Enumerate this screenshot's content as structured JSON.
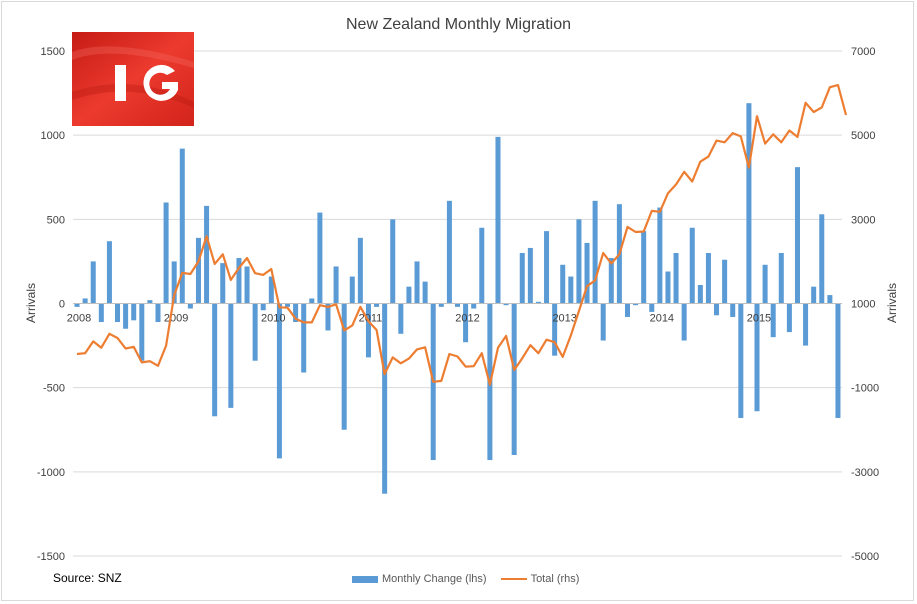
{
  "chart_data": {
    "type": "bar+line",
    "title": "New Zealand Monthly Migration",
    "source": "Source: SNZ",
    "ylabel_left": "Arrivals",
    "ylabel_right": "Arrivals",
    "y_left_lim": [
      -1500,
      1500
    ],
    "y_right_lim": [
      -5000,
      7000
    ],
    "y_left_ticks": [
      "1500",
      "1000",
      "500",
      "0",
      "-500",
      "-1000",
      "-1500"
    ],
    "y_right_ticks": [
      "7000",
      "5000",
      "3000",
      "1000",
      "-1000",
      "-3000",
      "-5000"
    ],
    "year_labels": [
      "2008",
      "2009",
      "2010",
      "2011",
      "2012",
      "2013",
      "2014",
      "2015"
    ],
    "year_start_index": [
      0,
      12,
      24,
      36,
      48,
      60,
      72,
      84
    ],
    "grid": true,
    "legend_position": "bottom",
    "colors": {
      "bar": "#5b9bd5",
      "line": "#ed7d31",
      "grid": "#d9d9d9",
      "logo": "#e12c22"
    },
    "series": [
      {
        "name": "Monthly Change (lhs)",
        "type": "bar",
        "values": [
          -20,
          30,
          250,
          -110,
          370,
          -110,
          -150,
          -100,
          -340,
          20,
          -110,
          600,
          250,
          920,
          -30,
          390,
          580,
          -670,
          240,
          -620,
          270,
          220,
          -340,
          -40,
          160,
          -920,
          -20,
          -110,
          -410,
          30,
          540,
          -160,
          220,
          -750,
          160,
          390,
          -320,
          -20,
          -1130,
          500,
          -180,
          100,
          250,
          130,
          -930,
          -20,
          610,
          -20,
          -230,
          -30,
          450,
          -930,
          990,
          -10,
          -900,
          300,
          330,
          10,
          430,
          -310,
          230,
          160,
          500,
          360,
          610,
          -220,
          270,
          590,
          -80,
          -10,
          430,
          -50,
          570,
          190,
          300,
          -220,
          450,
          110,
          300,
          -70,
          260,
          -80,
          -680,
          1190,
          -640,
          230,
          -200,
          300,
          -170,
          810,
          -250,
          100,
          530,
          50,
          -680
        ]
      },
      {
        "name": "Total (rhs)",
        "type": "line",
        "values": [
          -200,
          -180,
          100,
          -50,
          280,
          180,
          -70,
          -30,
          -400,
          -370,
          -480,
          0,
          1200,
          1730,
          1700,
          2000,
          2600,
          1940,
          2170,
          1560,
          1840,
          2080,
          1720,
          1680,
          1820,
          910,
          900,
          640,
          550,
          550,
          960,
          920,
          980,
          360,
          480,
          920,
          580,
          370,
          -680,
          -280,
          -420,
          -310,
          -90,
          -40,
          -860,
          -840,
          -200,
          -260,
          -500,
          -490,
          -180,
          -930,
          -50,
          230,
          -580,
          -300,
          10,
          -180,
          140,
          80,
          -270,
          240,
          820,
          1410,
          1550,
          2200,
          1950,
          2170,
          2820,
          2700,
          2710,
          3200,
          3180,
          3620,
          3830,
          4130,
          3900,
          4370,
          4490,
          4870,
          4830,
          5050,
          4970,
          4230,
          5450,
          4800,
          5020,
          4830,
          5110,
          4960,
          5770,
          5550,
          5660,
          6140,
          6190,
          5480
        ]
      }
    ]
  }
}
